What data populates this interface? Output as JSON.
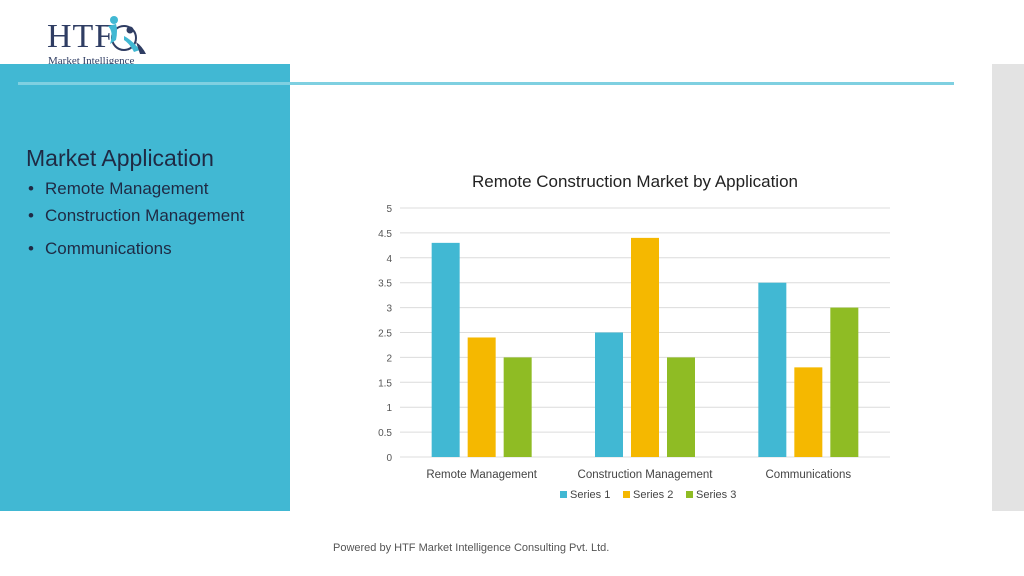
{
  "logo": {
    "brand": "HTF",
    "tagline": "Market Intelligence",
    "icon": "figures-circle-logo-icon"
  },
  "panel": {
    "title": "Market Application",
    "items": [
      "Remote Management",
      "Construction Management",
      "Communications"
    ],
    "color": "#41b8d3"
  },
  "chart_data": {
    "type": "bar",
    "title": "Remote Construction Market by Application",
    "categories": [
      "Remote Management",
      "Construction Management",
      "Communications"
    ],
    "series": [
      {
        "name": "Series 1",
        "values": [
          4.3,
          2.5,
          3.5
        ],
        "color": "#41b8d3"
      },
      {
        "name": "Series 2",
        "values": [
          2.4,
          4.4,
          1.8
        ],
        "color": "#f5b800"
      },
      {
        "name": "Series 3",
        "values": [
          2.0,
          2.0,
          3.0
        ],
        "color": "#8fbc24"
      }
    ],
    "yticks": [
      "0",
      "0.5",
      "1",
      "1.5",
      "2",
      "2.5",
      "3",
      "3.5",
      "4",
      "4.5",
      "5"
    ],
    "ylim": [
      0,
      5
    ],
    "grid": true,
    "legend": "bottom"
  },
  "footer": {
    "text": "Powered by HTF Market Intelligence Consulting Pvt. Ltd."
  }
}
